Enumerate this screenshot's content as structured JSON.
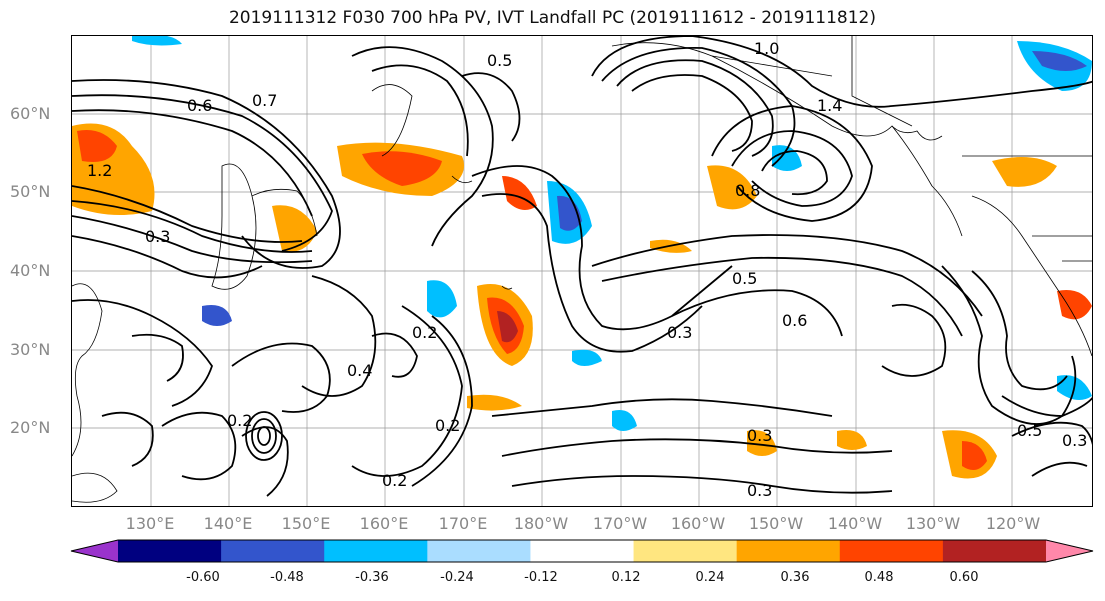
{
  "title": "2019111312 F030 700 hPa PV, IVT Landfall PC (2019111612 - 2019111812)",
  "lat_labels": [
    "60°N",
    "50°N",
    "40°N",
    "30°N",
    "20°N"
  ],
  "lon_labels": [
    "130°E",
    "140°E",
    "150°E",
    "160°E",
    "170°E",
    "180°W",
    "170°W",
    "160°W",
    "150°W",
    "140°W",
    "130°W",
    "120°W"
  ],
  "colorbar": {
    "ticks": [
      "-0.60",
      "-0.48",
      "-0.36",
      "-0.24",
      "-0.12",
      "0.12",
      "0.24",
      "0.36",
      "0.48",
      "0.60"
    ],
    "colors": [
      "#9a33cc",
      "#000080",
      "#3355cc",
      "#00bfff",
      "#aaddff",
      "#ffffff",
      "#ffe680",
      "#ffa500",
      "#ff4400",
      "#b22222",
      "#ff88aa"
    ]
  },
  "contour_labels": [
    "1.0",
    "1.4",
    "0.6",
    "0.7",
    "0.5",
    "0.8",
    "1.2",
    "0.3",
    "0.2",
    "0.4",
    "0.5",
    "0.6",
    "0.3",
    "0.2",
    "0.3",
    "0.2",
    "0.3",
    "0.5",
    "0.3",
    "0.2"
  ]
}
